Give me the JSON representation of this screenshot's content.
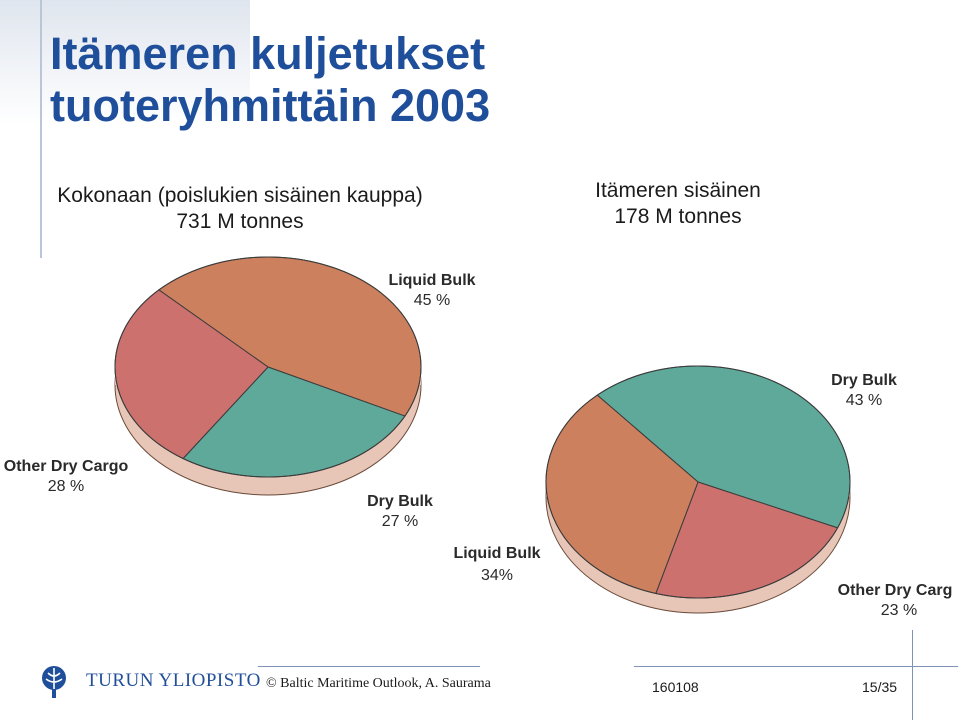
{
  "slide": {
    "title_line1": "Itämeren kuljetukset",
    "title_line2": "tuoteryhmittäin 2003"
  },
  "colors": {
    "liquid_bulk": "#cc805e",
    "dry_bulk": "#5ea99a",
    "other_dry_cargo": "#cd716f",
    "title": "#1f4e9a"
  },
  "chart_data": [
    {
      "type": "pie",
      "title_line1": "Kokonaan (poislukien sisäinen kauppa)",
      "title_line2": "731 M tonnes",
      "slices": [
        {
          "label": "Liquid Bulk",
          "value": 45,
          "value_text": "45 %",
          "color": "#cc805e"
        },
        {
          "label": "Dry Bulk",
          "value": 27,
          "value_text": "27 %",
          "color": "#5ea99a"
        },
        {
          "label": "Other Dry Cargo",
          "value": 28,
          "value_text": "28 %",
          "color": "#cd716f"
        }
      ]
    },
    {
      "type": "pie",
      "title_line1": "Itämeren sisäinen",
      "title_line2": "178 M tonnes",
      "slices": [
        {
          "label": "Dry Bulk",
          "value": 43,
          "value_text": "43 %",
          "color": "#5ea99a"
        },
        {
          "label": "Other Dry Carg",
          "value": 23,
          "value_text": "23 %",
          "color": "#cd716f"
        },
        {
          "label": "Liquid Bulk",
          "value": 34,
          "value_text": "34%",
          "color": "#cc805e"
        }
      ]
    }
  ],
  "footer": {
    "university": "TURUN YLIOPISTO",
    "copyright": "© Baltic Maritime Outlook, A. Saurama",
    "doc_code": "160108",
    "page": "15/35"
  },
  "icons": {
    "logo": "university-logo-icon"
  }
}
